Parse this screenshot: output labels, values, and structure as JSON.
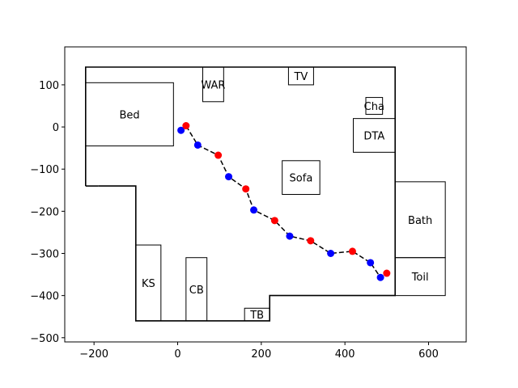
{
  "chart_data": {
    "type": "scatter",
    "title": "",
    "xlabel": "",
    "ylabel": "",
    "xlim": [
      -270,
      690
    ],
    "ylim": [
      -510,
      190
    ],
    "xticks": [
      -200,
      0,
      200,
      400,
      600
    ],
    "yticks": [
      -500,
      -400,
      -300,
      -200,
      -100,
      0,
      100
    ],
    "xtick_labels": [
      "−200",
      "0",
      "200",
      "400",
      "600"
    ],
    "ytick_labels": [
      "−500",
      "−400",
      "−300",
      "−200",
      "−100",
      "0",
      "100"
    ],
    "grid": false,
    "legend": "none",
    "colors": {
      "outline": "#000000",
      "path": "#000000",
      "blue_points": "#0000ff",
      "red_points": "#ff0000"
    },
    "walls": [
      [
        [
          -220,
          -140
        ],
        [
          -220,
          142
        ],
        [
          520,
          142
        ],
        [
          520,
          -400
        ],
        [
          220,
          -400
        ],
        [
          220,
          -460
        ],
        [
          -100,
          -460
        ],
        [
          -100,
          -140
        ],
        [
          -190,
          -140
        ]
      ],
      [
        [
          -220,
          -140
        ],
        [
          -190,
          -140
        ]
      ]
    ],
    "rooms": [
      {
        "label": "Bed",
        "x0": -220,
        "x1": -10,
        "y0": -45,
        "y1": 105
      },
      {
        "label": "WAR",
        "x0": 60,
        "x1": 110,
        "y0": 60,
        "y1": 142
      },
      {
        "label": "TV",
        "x0": 265,
        "x1": 325,
        "y0": 100,
        "y1": 142
      },
      {
        "label": "Cha",
        "x0": 450,
        "x1": 490,
        "y0": 30,
        "y1": 70
      },
      {
        "label": "DTA",
        "x0": 420,
        "x1": 520,
        "y0": -60,
        "y1": 20
      },
      {
        "label": "Sofa",
        "x0": 250,
        "x1": 340,
        "y0": -160,
        "y1": -80
      },
      {
        "label": "Bath",
        "x0": 520,
        "x1": 640,
        "y0": -310,
        "y1": -130
      },
      {
        "label": "Toil",
        "x0": 520,
        "x1": 640,
        "y0": -400,
        "y1": -310
      },
      {
        "label": "KS",
        "x0": -100,
        "x1": -40,
        "y0": -460,
        "y1": -280
      },
      {
        "label": "CB",
        "x0": 20,
        "x1": 70,
        "y0": -460,
        "y1": -310
      },
      {
        "label": "TB",
        "x0": 160,
        "x1": 220,
        "y0": -460,
        "y1": -430
      }
    ],
    "path": [
      [
        8,
        -8
      ],
      [
        20,
        3
      ],
      [
        48,
        -43
      ],
      [
        97,
        -67
      ],
      [
        122,
        -118
      ],
      [
        163,
        -147
      ],
      [
        182,
        -197
      ],
      [
        232,
        -222
      ],
      [
        268,
        -259
      ],
      [
        318,
        -270
      ],
      [
        366,
        -300
      ],
      [
        418,
        -295
      ],
      [
        461,
        -322
      ],
      [
        485,
        -357
      ],
      [
        500,
        -347
      ]
    ],
    "blue_points": [
      [
        8,
        -8
      ],
      [
        48,
        -43
      ],
      [
        122,
        -118
      ],
      [
        182,
        -197
      ],
      [
        268,
        -259
      ],
      [
        366,
        -300
      ],
      [
        461,
        -322
      ],
      [
        485,
        -357
      ]
    ],
    "red_points": [
      [
        20,
        3
      ],
      [
        97,
        -67
      ],
      [
        163,
        -147
      ],
      [
        232,
        -222
      ],
      [
        318,
        -270
      ],
      [
        418,
        -295
      ],
      [
        500,
        -347
      ]
    ]
  }
}
